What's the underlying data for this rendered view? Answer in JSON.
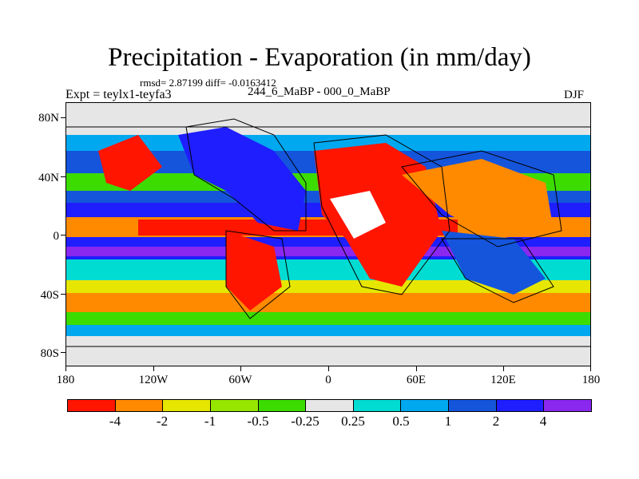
{
  "figure": {
    "title": "Precipitation - Evaporation (in mm/day)",
    "stats": "rmsd= 2.87199 diff= -0.0163412",
    "experiment": "Expt = teylx1-teyfa3",
    "period": "244_6_MaBP - 000_0_MaBP",
    "season": "DJF"
  },
  "axes": {
    "y_ticks": [
      "80N",
      "40N",
      "0",
      "40S",
      "80S"
    ],
    "x_ticks": [
      "180",
      "120W",
      "60W",
      "0",
      "60E",
      "120E",
      "180"
    ]
  },
  "colorbar": {
    "colors": [
      "#ff1500",
      "#ff8a00",
      "#e6e600",
      "#96e600",
      "#3cdc00",
      "#e6e6e6",
      "#00dcd2",
      "#00a8f0",
      "#1455dc",
      "#1e1eff",
      "#8a28f0"
    ],
    "labels": [
      "-4",
      "-2",
      "-1",
      "-0.5",
      "-0.25",
      "0.25",
      "0.5",
      "1",
      "2",
      "4"
    ]
  },
  "map_colors": {
    "land_outline": "#000000",
    "ice": "#e6e6e6"
  }
}
